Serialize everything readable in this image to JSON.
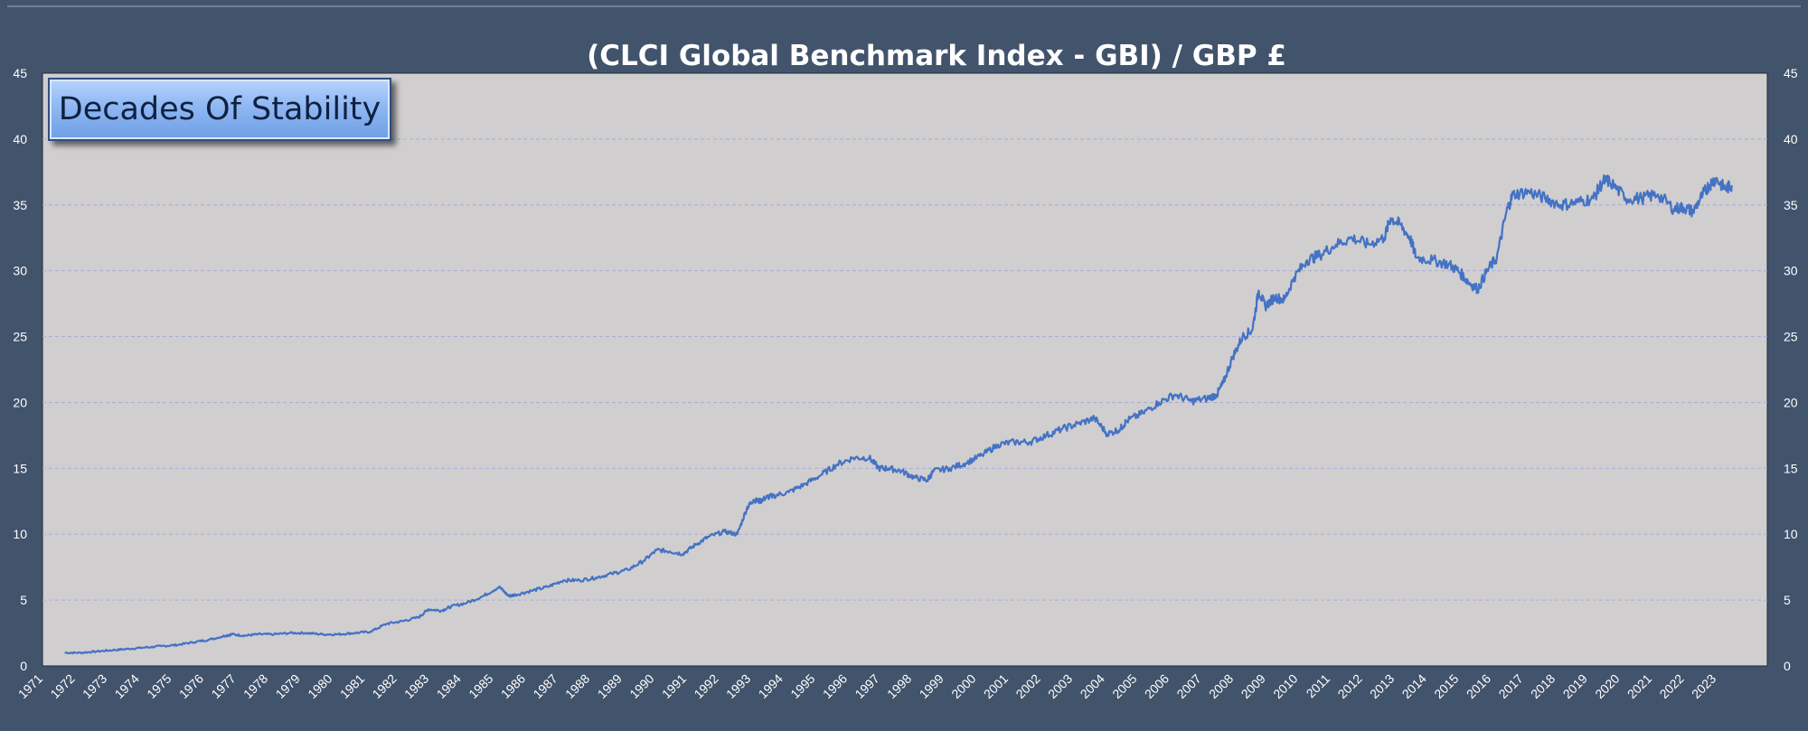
{
  "chart_data": {
    "type": "line",
    "title": "(CLCI Global Benchmark Index - GBI) / GBP £",
    "annotation": "Decades Of Stability",
    "xlabel": "",
    "ylabel": "",
    "ylim": [
      0,
      45
    ],
    "y_ticks": [
      "0",
      "5",
      "10",
      "15",
      "20",
      "25",
      "30",
      "35",
      "40",
      "45"
    ],
    "x_ticks": [
      "1971",
      "1972",
      "1973",
      "1974",
      "1975",
      "1976",
      "1977",
      "1978",
      "1979",
      "1980",
      "1981",
      "1982",
      "1983",
      "1984",
      "1985",
      "1986",
      "1987",
      "1988",
      "1989",
      "1990",
      "1991",
      "1992",
      "1993",
      "1994",
      "1995",
      "1996",
      "1997",
      "1998",
      "1999",
      "2000",
      "2001",
      "2002",
      "2003",
      "2004",
      "2005",
      "2006",
      "2007",
      "2008",
      "2009",
      "2010",
      "2011",
      "2012",
      "2013",
      "2014",
      "2015",
      "2016",
      "2017",
      "2018",
      "2019",
      "2020",
      "2021",
      "2022",
      "2023"
    ],
    "grid": "horizontal dashed",
    "colors": {
      "line": "#4472c4",
      "plot_bg": "#d0cecf",
      "frame_bg": "#42536c",
      "grid": "#a9aed6",
      "text": "#ffffff"
    },
    "series": [
      {
        "x": [
          1972.0,
          1972.5,
          1973.0,
          1973.5,
          1974.0,
          1974.5,
          1975.0,
          1975.5,
          1976.0,
          1976.5,
          1977.0,
          1977.2,
          1977.6,
          1978.0,
          1978.5,
          1979.0,
          1979.5,
          1980.0,
          1980.5,
          1981.0,
          1981.5,
          1982.0,
          1982.5,
          1983.0,
          1983.3,
          1983.7,
          1984.0,
          1984.5,
          1985.0,
          1985.5,
          1985.8,
          1986.0,
          1986.5,
          1987.0,
          1987.5,
          1988.0,
          1988.5,
          1989.0,
          1989.5,
          1990.0,
          1990.4,
          1990.8,
          1991.2,
          1991.6,
          1992.0,
          1992.5,
          1992.9,
          1993.2,
          1993.4,
          1993.6,
          1993.8,
          1994.0,
          1994.5,
          1995.0,
          1995.5,
          1996.0,
          1996.5,
          1997.0,
          1997.3,
          1997.6,
          1998.0,
          1998.4,
          1998.8,
          1999.0,
          1999.5,
          2000.0,
          2000.5,
          2001.0,
          2001.5,
          2002.0,
          2002.5,
          2003.0,
          2003.5,
          2004.0,
          2004.4,
          2004.8,
          2005.0,
          2005.5,
          2006.0,
          2006.5,
          2007.0,
          2007.5,
          2007.8,
          2008.0,
          2008.3,
          2008.6,
          2008.9,
          2009.1,
          2009.3,
          2009.6,
          2009.9,
          2010.2,
          2010.6,
          2011.0,
          2011.5,
          2012.0,
          2012.5,
          2013.0,
          2013.2,
          2013.5,
          2013.8,
          2014.0,
          2014.5,
          2015.0,
          2015.3,
          2015.6,
          2015.9,
          2016.2,
          2016.5,
          2016.8,
          2017.0,
          2017.5,
          2018.0,
          2018.5,
          2019.0,
          2019.5,
          2019.8,
          2020.0,
          2020.5,
          2021.0,
          2021.5,
          2022.0,
          2022.3,
          2022.6,
          2022.9,
          2023.1,
          2023.3,
          2023.6,
          2023.8
        ],
        "y": [
          1.0,
          1.0,
          1.1,
          1.2,
          1.3,
          1.4,
          1.5,
          1.6,
          1.8,
          2.0,
          2.3,
          2.4,
          2.3,
          2.4,
          2.4,
          2.5,
          2.5,
          2.4,
          2.4,
          2.5,
          2.6,
          3.2,
          3.4,
          3.7,
          4.3,
          4.2,
          4.5,
          4.8,
          5.3,
          6.0,
          5.3,
          5.4,
          5.7,
          6.0,
          6.5,
          6.5,
          6.7,
          7.0,
          7.3,
          8.0,
          8.8,
          8.7,
          8.5,
          9.2,
          9.8,
          10.2,
          10.0,
          12.0,
          12.6,
          12.5,
          12.8,
          12.9,
          13.2,
          13.8,
          14.5,
          15.3,
          15.8,
          15.8,
          15.0,
          15.0,
          14.8,
          14.3,
          14.1,
          14.8,
          15.0,
          15.4,
          16.0,
          16.8,
          17.0,
          17.0,
          17.5,
          18.0,
          18.4,
          18.8,
          17.6,
          18.0,
          18.6,
          19.2,
          20.0,
          20.6,
          20.1,
          20.3,
          20.6,
          21.5,
          23.5,
          25.0,
          25.5,
          28.5,
          27.3,
          28.0,
          27.8,
          29.5,
          30.8,
          31.2,
          32.0,
          32.5,
          32.0,
          32.5,
          34.0,
          33.5,
          32.5,
          31.0,
          30.8,
          30.5,
          30.0,
          29.2,
          28.6,
          30.0,
          31.0,
          34.5,
          35.8,
          36.0,
          35.5,
          35.0,
          35.2,
          35.5,
          36.8,
          36.8,
          35.5,
          35.5,
          35.8,
          34.7,
          34.8,
          34.5,
          35.8,
          36.5,
          37.0,
          36.2,
          36.5
        ]
      }
    ]
  }
}
